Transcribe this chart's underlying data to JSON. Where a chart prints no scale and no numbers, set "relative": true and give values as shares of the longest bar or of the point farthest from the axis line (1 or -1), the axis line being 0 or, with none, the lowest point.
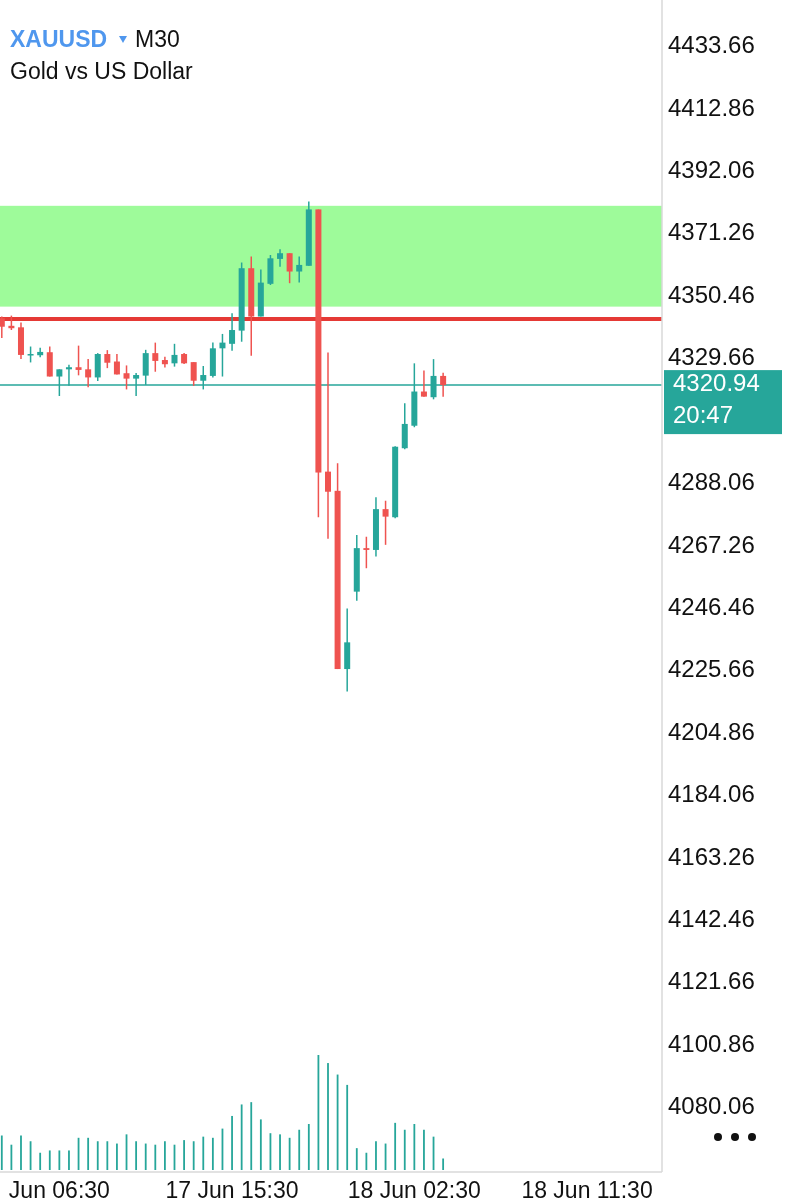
{
  "chart_data": [
    {
      "type": "candlestick",
      "title": "XAUUSD",
      "subtitle": "Gold vs US Dollar",
      "annotations": [
        "M30",
        "20:47"
      ],
      "categories": [
        null,
        null,
        null,
        null,
        null,
        null,
        null,
        null,
        null,
        null,
        null,
        null,
        null,
        null,
        null,
        null,
        null,
        null,
        null,
        null,
        null,
        null,
        null,
        null,
        null,
        null,
        null,
        null,
        null,
        null,
        null,
        null,
        null,
        null,
        null,
        null,
        null,
        null,
        null,
        null,
        null,
        null,
        null,
        null,
        null,
        null,
        null,
        null,
        null,
        null,
        null,
        null,
        null,
        null,
        null,
        null,
        null,
        null,
        null,
        null,
        null,
        null,
        null,
        null,
        null,
        null,
        null,
        null,
        null
      ],
      "ohlc": [
        [
          4343.2,
          4343.8,
          4336.6,
          4340.4
        ],
        [
          4340.7,
          4344.1,
          4339.3,
          4339.9
        ],
        [
          4340.2,
          4341.8,
          4329.6,
          4331.0
        ],
        [
          4331.0,
          4333.8,
          4328.5,
          4331.3
        ],
        [
          4330.9,
          4333.4,
          4330.2,
          4332.0
        ],
        [
          4331.9,
          4333.8,
          4323.8,
          4323.8
        ],
        [
          4323.8,
          4326.2,
          4317.3,
          4326.2
        ],
        [
          4326.2,
          4327.7,
          4320.7,
          4326.9
        ],
        [
          4326.9,
          4334.1,
          4324.2,
          4326.0
        ],
        [
          4326.2,
          4329.6,
          4320.2,
          4323.5
        ],
        [
          4323.5,
          4331.6,
          4322.3,
          4331.3
        ],
        [
          4331.3,
          4332.6,
          4326.6,
          4328.4
        ],
        [
          4328.8,
          4331.3,
          4324.5,
          4324.5
        ],
        [
          4324.9,
          4327.5,
          4319.5,
          4323.1
        ],
        [
          4323.1,
          4325.0,
          4317.3,
          4324.3
        ],
        [
          4324.1,
          4332.7,
          4321.0,
          4331.6
        ],
        [
          4331.6,
          4335.1,
          4325.4,
          4329.0
        ],
        [
          4329.3,
          4330.4,
          4326.8,
          4327.9
        ],
        [
          4328.2,
          4334.7,
          4327.1,
          4331.0
        ],
        [
          4331.3,
          4331.6,
          4328.0,
          4328.2
        ],
        [
          4328.6,
          4328.6,
          4320.7,
          4322.4
        ],
        [
          4322.4,
          4327.3,
          4319.5,
          4324.3
        ],
        [
          4324.0,
          4335.1,
          4323.5,
          4333.2
        ],
        [
          4333.2,
          4338.0,
          4323.8,
          4335.1
        ],
        [
          4334.7,
          4344.9,
          4332.4,
          4339.3
        ],
        [
          4339.1,
          4361.8,
          4335.4,
          4359.9
        ],
        [
          4359.9,
          4363.8,
          4330.7,
          4343.8
        ],
        [
          4343.8,
          4359.5,
          4343.8,
          4355.1
        ],
        [
          4354.7,
          4364.3,
          4354.3,
          4363.2
        ],
        [
          4363.0,
          4366.2,
          4360.4,
          4364.9
        ],
        [
          4364.9,
          4364.9,
          4354.9,
          4358.8
        ],
        [
          4358.8,
          4363.8,
          4355.1,
          4361.0
        ],
        [
          4360.7,
          4382.1,
          4360.7,
          4379.5
        ],
        [
          4379.5,
          4379.5,
          4276.9,
          4291.8
        ],
        [
          4292.1,
          4331.8,
          4269.7,
          4285.4
        ],
        [
          4285.7,
          4294.9,
          4226.3,
          4226.3
        ],
        [
          4226.3,
          4246.5,
          4218.8,
          4235.2
        ],
        [
          4252.1,
          4271.0,
          4249.1,
          4266.6
        ],
        [
          4266.6,
          4270.4,
          4259.9,
          4266.0
        ],
        [
          4266.0,
          4283.6,
          4263.8,
          4279.6
        ],
        [
          4279.6,
          4282.4,
          4267.7,
          4277.1
        ],
        [
          4276.9,
          4300.6,
          4276.6,
          4300.4
        ],
        [
          4299.9,
          4314.9,
          4299.6,
          4308.0
        ],
        [
          4307.4,
          4328.2,
          4306.9,
          4318.8
        ],
        [
          4318.8,
          4325.8,
          4317.1,
          4317.1
        ],
        [
          4316.9,
          4329.6,
          4316.2,
          4324.0
        ],
        [
          4324.0,
          4325.1,
          4317.1,
          4320.94
        ],
        null,
        null,
        null,
        null,
        null,
        null,
        null,
        null,
        null,
        null,
        null,
        null,
        null,
        null,
        null,
        null,
        null,
        null,
        null,
        null,
        null,
        null
      ],
      "colors": [
        "#ef5350",
        "#ef5350",
        "#ef5350",
        "#26a69a",
        "#26a69a",
        "#ef5350",
        "#26a69a",
        "#26a69a",
        "#ef5350",
        "#ef5350",
        "#26a69a",
        "#ef5350",
        "#ef5350",
        "#ef5350",
        "#26a69a",
        "#26a69a",
        "#ef5350",
        "#ef5350",
        "#26a69a",
        "#ef5350",
        "#ef5350",
        "#26a69a",
        "#26a69a",
        "#26a69a",
        "#26a69a",
        "#26a69a",
        "#ef5350",
        "#26a69a",
        "#26a69a",
        "#26a69a",
        "#ef5350",
        "#26a69a",
        "#26a69a",
        "#ef5350",
        "#ef5350",
        "#ef5350",
        "#26a69a",
        "#26a69a",
        "#ef5350",
        "#26a69a",
        "#ef5350",
        "#26a69a",
        "#26a69a",
        "#26a69a",
        "#ef5350",
        "#26a69a",
        "#ef5350",
        null,
        null,
        null,
        null,
        null,
        null,
        null,
        null,
        null,
        null,
        null,
        null,
        null,
        null,
        null,
        null,
        null,
        null,
        null,
        null,
        null,
        null
      ],
      "ylim": [
        4058.66,
        4449.3
      ],
      "yticks": [
        4433.66,
        4412.86,
        4392.06,
        4371.26,
        4350.46,
        4329.66,
        4288.06,
        4267.26,
        4246.46,
        4225.66,
        4204.86,
        4184.06,
        4163.26,
        4142.46,
        4121.66,
        4100.86,
        4080.06
      ],
      "tick_labels": "y",
      "bands": [
        {
          "axis": "y",
          "from": 4347.1,
          "to": 4380.7,
          "color": "#9efb9a"
        }
      ],
      "ref_lines": [
        {
          "axis": "y",
          "value": 4343,
          "color": "#e53935"
        },
        {
          "axis": "y",
          "value": 4320.94,
          "label": "4320.94",
          "color": "#26a69a"
        }
      ]
    },
    {
      "type": "bar",
      "relative": true,
      "color": "#26a69a",
      "tick_labels": "x",
      "categories": [
        null,
        null,
        null,
        null,
        null,
        null,
        "Jun 06:30",
        null,
        null,
        null,
        null,
        null,
        null,
        null,
        null,
        null,
        null,
        null,
        null,
        null,
        null,
        null,
        null,
        null,
        "17 Jun 15:30",
        null,
        null,
        null,
        null,
        null,
        null,
        null,
        null,
        null,
        null,
        null,
        null,
        null,
        null,
        null,
        null,
        null,
        null,
        "18 Jun 02:30",
        null,
        null,
        null,
        null,
        null,
        null,
        null,
        null,
        null,
        null,
        null,
        null,
        null,
        null,
        null,
        null,
        null,
        "18 Jun 11:30",
        null,
        null,
        null,
        null,
        null,
        null,
        null
      ],
      "values": [
        0.3,
        0.22,
        0.3,
        0.25,
        0.15,
        0.17,
        0.17,
        0.17,
        0.28,
        0.28,
        0.25,
        0.25,
        0.23,
        0.31,
        0.25,
        0.23,
        0.22,
        0.25,
        0.22,
        0.26,
        0.25,
        0.29,
        0.28,
        0.36,
        0.47,
        0.57,
        0.59,
        0.44,
        0.32,
        0.31,
        0.28,
        0.35,
        0.4,
        1,
        0.93,
        0.83,
        0.74,
        0.19,
        0.15,
        0.25,
        0.23,
        0.41,
        0.35,
        0.4,
        0.35,
        0.29,
        0.1,
        null,
        null,
        null,
        null,
        null,
        null,
        null,
        null,
        null,
        null,
        null,
        null,
        null,
        null,
        null,
        null,
        null,
        null,
        null,
        null,
        null,
        null
      ]
    }
  ]
}
